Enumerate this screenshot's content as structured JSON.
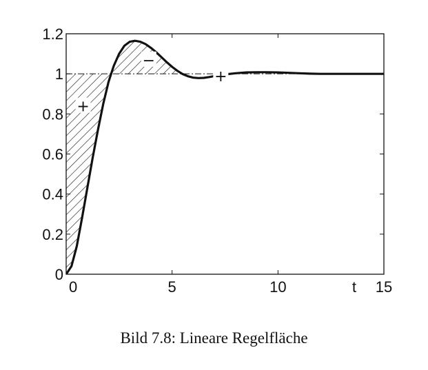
{
  "caption": "Bild 7.8: Lineare Regelfläche",
  "chart_data": {
    "type": "line",
    "title": "",
    "xlabel": "t",
    "ylabel": "",
    "xlim": [
      0,
      15
    ],
    "ylim": [
      0,
      1.2
    ],
    "xticks": [
      0,
      5,
      10,
      15
    ],
    "yticks": [
      0,
      0.2,
      0.4,
      0.6,
      0.8,
      1,
      1.2
    ],
    "grid": false,
    "reference_line": {
      "y": 1,
      "style": "dash-dot"
    },
    "series": [
      {
        "x": [
          0,
          0.25,
          0.5,
          0.75,
          1,
          1.25,
          1.5,
          1.75,
          2,
          2.25,
          2.5,
          2.75,
          3,
          3.25,
          3.5,
          3.75,
          4,
          4.25,
          4.5,
          4.75,
          5,
          5.25,
          5.5,
          5.75,
          6,
          6.25,
          6.5,
          6.75,
          7,
          7.5,
          8,
          8.5,
          9,
          9.5,
          10,
          10.5,
          11,
          11.5,
          12,
          12.5,
          13,
          13.5,
          14,
          14.5,
          15
        ],
        "y": [
          0,
          0.04,
          0.14,
          0.28,
          0.43,
          0.58,
          0.72,
          0.85,
          0.96,
          1.04,
          1.1,
          1.14,
          1.16,
          1.165,
          1.16,
          1.148,
          1.13,
          1.108,
          1.083,
          1.058,
          1.035,
          1.015,
          0.999,
          0.988,
          0.981,
          0.979,
          0.98,
          0.984,
          0.989,
          0.997,
          1.003,
          1.007,
          1.008,
          1.008,
          1.007,
          1.005,
          1.003,
          1.001,
          1.0,
          1.0,
          1.0,
          1.0,
          1.0,
          1.0,
          1.0
        ]
      }
    ],
    "shaded_regions": [
      {
        "x_range": [
          0,
          2.2
        ],
        "between": "curve_and_reference",
        "sign": "+",
        "fill": "hatched"
      },
      {
        "x_range": [
          2.2,
          5.5
        ],
        "between": "curve_and_reference",
        "sign": "−",
        "fill": "hatched"
      }
    ],
    "annotations": [
      {
        "text": "+",
        "x": 0.8,
        "y": 0.84
      },
      {
        "text": "−",
        "x": 3.9,
        "y": 1.07
      },
      {
        "text": "+",
        "x": 7.3,
        "y": 0.99
      }
    ],
    "colors": {
      "curve": "#111111",
      "axes": "#111111",
      "hatch": "#222222"
    }
  }
}
